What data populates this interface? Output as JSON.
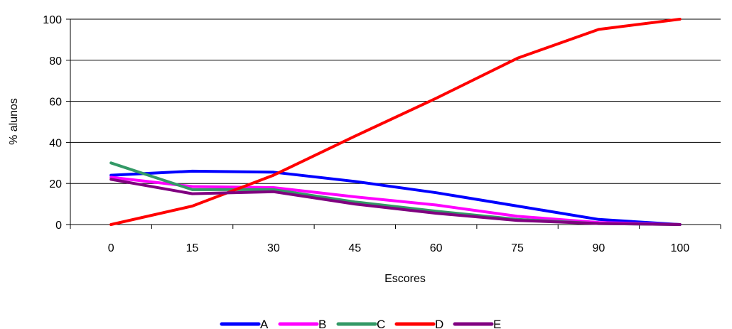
{
  "chart_data": {
    "type": "line",
    "title": "",
    "xlabel": "Escores",
    "ylabel": "% alunos",
    "categories": [
      "0",
      "15",
      "30",
      "45",
      "60",
      "75",
      "90",
      "100"
    ],
    "ylim": [
      0,
      100
    ],
    "yticks": [
      "0",
      "20",
      "40",
      "60",
      "80",
      "100"
    ],
    "grid": "horizontal",
    "legend_position": "bottom",
    "series": [
      {
        "name": "A",
        "color": "#0000ff",
        "values": [
          24,
          26,
          25.5,
          21,
          15.5,
          9,
          2.5,
          0
        ]
      },
      {
        "name": "B",
        "color": "#ff00ff",
        "values": [
          23,
          18.5,
          18,
          13.5,
          9.5,
          4,
          1,
          0
        ]
      },
      {
        "name": "C",
        "color": "#339966",
        "values": [
          30,
          17,
          17,
          11,
          6.5,
          2.5,
          0.5,
          0
        ]
      },
      {
        "name": "D",
        "color": "#ff0000",
        "values": [
          0,
          9,
          24,
          43,
          61.5,
          81,
          95,
          100
        ]
      },
      {
        "name": "E",
        "color": "#800080",
        "values": [
          22,
          15,
          16,
          10,
          5.5,
          2,
          0.5,
          0
        ]
      }
    ]
  }
}
